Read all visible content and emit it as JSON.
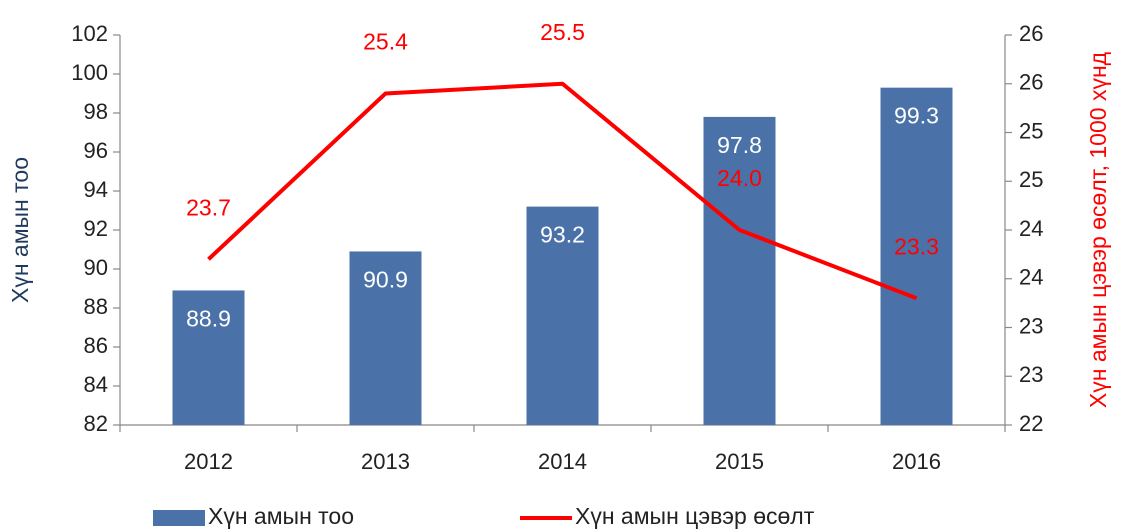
{
  "chart_data": {
    "type": "bar_line",
    "categories": [
      "2012",
      "2013",
      "2014",
      "2015",
      "2016"
    ],
    "series": [
      {
        "name": "Хүн амын тоо",
        "color": "#4a72a8",
        "type": "bar",
        "values": [
          88.9,
          90.9,
          93.2,
          97.8,
          99.3
        ]
      },
      {
        "name": "Хүн амын цэвэр өсөлт",
        "color": "#ff0000",
        "type": "line",
        "axis": "y2",
        "values": [
          23.7,
          25.4,
          25.5,
          24.0,
          23.3
        ],
        "value_labels": [
          "23.7",
          "25.4",
          "25.5",
          "24.0",
          "23.3"
        ]
      }
    ],
    "ylabel": "Хүн амын  тоо",
    "y2label": "Хүн амын цэвэр өсөлт, 1000 хүнд",
    "ylim": [
      82,
      102
    ],
    "yticks": [
      82,
      84,
      86,
      88,
      90,
      92,
      94,
      96,
      98,
      100,
      102
    ],
    "y2lim": [
      22,
      26
    ],
    "y2ticks": [
      22,
      {
        "value": 22.5,
        "label": "23"
      },
      23,
      {
        "value": 23.5,
        "label": "24"
      },
      24,
      {
        "value": 24.5,
        "label": "25"
      },
      25,
      {
        "value": 25.5,
        "label": "26"
      },
      26
    ],
    "legend": "bottom"
  }
}
